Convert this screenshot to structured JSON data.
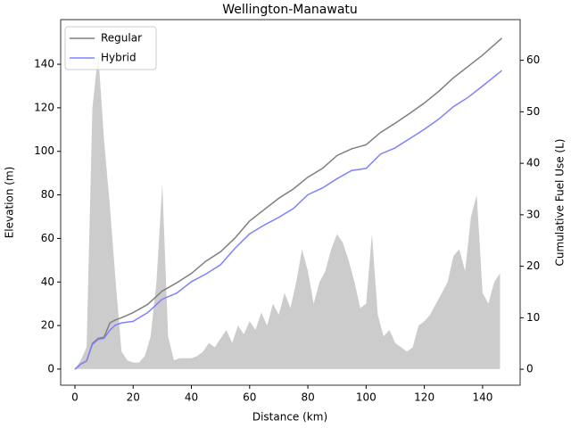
{
  "chart_data": {
    "type": "line",
    "title": "Wellington-Manawatu",
    "x_label": "Distance (km)",
    "y_label": "Elevation (m)",
    "y2_label": "Cumulative Fuel Use (L)",
    "xlim": [
      -4.9,
      152.9
    ],
    "ylim": [
      -7.4,
      160.5
    ],
    "y2lim": [
      -3.1,
      67.9
    ],
    "xticks": [
      0,
      20,
      40,
      60,
      80,
      100,
      120,
      140
    ],
    "yticks": [
      0,
      20,
      40,
      60,
      80,
      100,
      120,
      140
    ],
    "y2ticks": [
      0,
      10,
      20,
      30,
      40,
      50,
      60
    ],
    "legend": "upper left",
    "area": {
      "color": "#cccccc",
      "x": [
        0,
        2,
        4,
        6,
        8,
        10,
        12,
        14,
        16,
        18,
        20,
        22,
        24,
        26,
        28,
        30,
        32,
        34,
        36,
        38,
        40,
        42,
        44,
        46,
        48,
        50,
        52,
        54,
        56,
        58,
        60,
        62,
        64,
        66,
        68,
        70,
        72,
        74,
        76,
        78,
        80,
        82,
        84,
        86,
        88,
        90,
        92,
        94,
        96,
        98,
        100,
        102,
        104,
        106,
        108,
        110,
        112,
        114,
        116,
        118,
        120,
        122,
        124,
        126,
        128,
        130,
        132,
        134,
        136,
        138,
        140,
        142,
        144,
        146
      ],
      "values": [
        0,
        4,
        10,
        120,
        145,
        105,
        75,
        40,
        8,
        4,
        3,
        3,
        6,
        15,
        40,
        85,
        15,
        4,
        5,
        5,
        5,
        6,
        8,
        12,
        10,
        14,
        18,
        12,
        20,
        16,
        22,
        18,
        26,
        20,
        30,
        25,
        35,
        28,
        40,
        55,
        45,
        30,
        40,
        45,
        55,
        62,
        58,
        50,
        40,
        28,
        30,
        62,
        25,
        15,
        18,
        12,
        10,
        8,
        10,
        20,
        22,
        25,
        30,
        35,
        40,
        52,
        55,
        45,
        70,
        80,
        35,
        30,
        40,
        44
      ]
    },
    "series": [
      {
        "name": "Regular",
        "color": "#7f7f7f",
        "axis": "y2",
        "x": [
          0,
          2,
          4,
          6,
          8,
          10,
          12,
          14,
          16,
          20,
          25,
          30,
          35,
          40,
          45,
          50,
          55,
          60,
          65,
          70,
          75,
          80,
          85,
          90,
          95,
          100,
          105,
          110,
          115,
          120,
          125,
          130,
          135,
          140,
          146.6
        ],
        "values": [
          0,
          1,
          1.6,
          5,
          6,
          6.2,
          9,
          9.6,
          10,
          11,
          12.6,
          15.2,
          16.8,
          18.6,
          21,
          22.8,
          25.5,
          28.8,
          31,
          33.2,
          35,
          37.3,
          39,
          41.5,
          42.8,
          43.6,
          46,
          47.8,
          49.7,
          51.7,
          54,
          56.6,
          58.8,
          61,
          64.3
        ]
      },
      {
        "name": "Hybrid",
        "color": "#8080ff",
        "axis": "y2",
        "x": [
          0,
          2,
          4,
          6,
          8,
          10,
          12,
          14,
          16,
          20,
          25,
          30,
          35,
          40,
          45,
          50,
          55,
          60,
          65,
          70,
          75,
          80,
          85,
          90,
          95,
          100,
          105,
          110,
          115,
          120,
          125,
          130,
          135,
          140,
          146.6
        ],
        "values": [
          0,
          1,
          1.6,
          4.8,
          5.8,
          6,
          7.6,
          8.6,
          9,
          9.3,
          11,
          13.6,
          14.8,
          17,
          18.5,
          20.3,
          23.5,
          26.3,
          28,
          29.5,
          31.2,
          33.9,
          35.2,
          37,
          38.6,
          39,
          41.8,
          43,
          44.8,
          46.6,
          48.6,
          51,
          52.8,
          55,
          58
        ]
      }
    ]
  }
}
